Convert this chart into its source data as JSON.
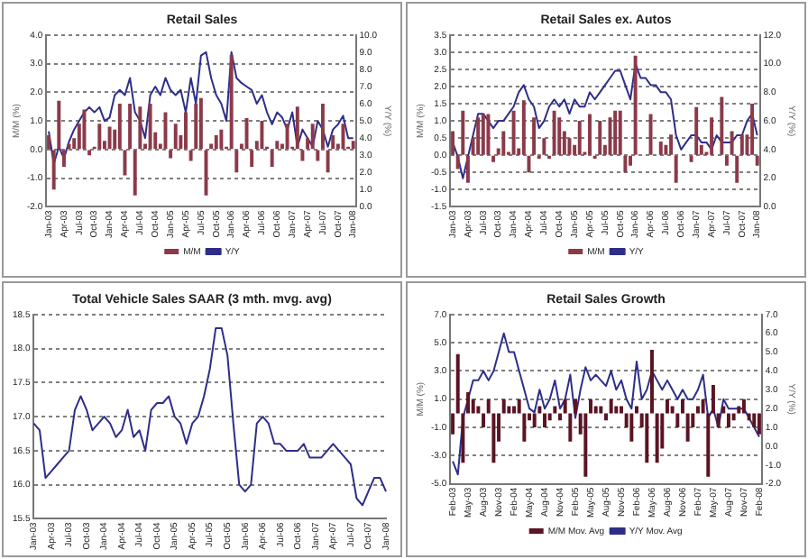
{
  "chart_data": [
    {
      "type": "bar",
      "title": "Retail Sales",
      "ylabel": "M/M (%)",
      "y2label": "Y/Y (%)",
      "categories": [
        "Jan-03",
        null,
        null,
        "Apr-03",
        null,
        null,
        "Jul-03",
        null,
        null,
        "Oct-03",
        null,
        null,
        "Jan-04",
        null,
        null,
        "Apr-04",
        null,
        null,
        "Jul-04",
        null,
        null,
        "Oct-04",
        null,
        null,
        "Jan-05",
        null,
        null,
        "Apr-05",
        null,
        null,
        "Jul-05",
        null,
        null,
        "Oct-05",
        null,
        null,
        "Jan-06",
        null,
        null,
        "Apr-06",
        null,
        null,
        "Jul-06",
        null,
        null,
        "Oct-06",
        null,
        null,
        "Jan-07",
        null,
        null,
        "Apr-07",
        null,
        null,
        "Jul-07",
        null,
        null,
        "Oct-07",
        null,
        null,
        "Jan-08"
      ],
      "series": [
        {
          "name": "M/M",
          "type": "bar",
          "color": "#8b3a4a",
          "values": [
            0.5,
            -1.4,
            1.7,
            -0.6,
            0.2,
            0.4,
            0.9,
            1.4,
            -0.2,
            0.1,
            0.9,
            0.3,
            0.8,
            0.7,
            1.6,
            -0.9,
            1.6,
            -1.6,
            1.5,
            0.2,
            1.6,
            0.6,
            0.2,
            1.3,
            -0.3,
            0.9,
            0.5,
            1.3,
            -0.4,
            1.6,
            1.8,
            -1.6,
            0.2,
            0.5,
            0.7,
            0.1,
            3.3,
            -0.8,
            0.2,
            1.1,
            -0.6,
            0.3,
            1.0,
            0.1,
            -0.6,
            0.3,
            0.2,
            0.9,
            0.1,
            1.5,
            -0.4,
            0.4,
            0.9,
            -0.4,
            1.6,
            -0.8,
            0.5,
            0.2,
            0.9,
            0.1,
            0.3
          ]
        },
        {
          "name": "Y/Y",
          "type": "line",
          "axis": "y2",
          "color": "#2e2e8a",
          "values": [
            4.4,
            2.5,
            3.5,
            2.8,
            3.8,
            4.5,
            5.0,
            5.5,
            5.8,
            5.5,
            5.8,
            5.0,
            5.2,
            6.5,
            6.8,
            6.5,
            7.5,
            5.5,
            5.0,
            4.0,
            6.5,
            7.0,
            6.5,
            7.5,
            6.8,
            6.5,
            6.8,
            5.5,
            7.5,
            6.0,
            8.8,
            9.0,
            7.5,
            6.5,
            6.0,
            5.0,
            9.0,
            7.5,
            7.2,
            7.0,
            6.8,
            6.0,
            6.5,
            5.5,
            4.8,
            5.5,
            5.2,
            4.5,
            5.5,
            3.5,
            4.5,
            4.0,
            3.5,
            5.0,
            4.5,
            3.5,
            4.5,
            4.8,
            5.3,
            4.0,
            4.0
          ]
        }
      ],
      "ylim": [
        -2,
        4
      ],
      "yticks": [
        {
          "value": -2,
          "label": "-2.0"
        },
        {
          "value": -1,
          "label": "-1.0"
        },
        {
          "value": 0,
          "label": "0.0"
        },
        {
          "value": 1,
          "label": "1.0"
        },
        {
          "value": 2,
          "label": "2.0"
        },
        {
          "value": 3,
          "label": "3.0"
        },
        {
          "value": 4,
          "label": "4.0"
        }
      ],
      "y2lim": [
        0,
        10
      ],
      "y2ticks": [
        {
          "value": 0,
          "label": "0.0"
        },
        {
          "value": 1,
          "label": "1.0"
        },
        {
          "value": 2,
          "label": "2.0"
        },
        {
          "value": 3,
          "label": "3.0"
        },
        {
          "value": 4,
          "label": "4.0"
        },
        {
          "value": 5,
          "label": "5.0"
        },
        {
          "value": 6,
          "label": "6.0"
        },
        {
          "value": 7,
          "label": "7.0"
        },
        {
          "value": 8,
          "label": "8.0"
        },
        {
          "value": 9,
          "label": "9.0"
        },
        {
          "value": 10,
          "label": "10.0"
        }
      ],
      "grid": "y",
      "legend": "bottom"
    },
    {
      "type": "bar",
      "title": "Retail Sales ex. Autos",
      "ylabel": "M/M (%)",
      "y2label": "Y/Y (%)",
      "categories": [
        "Jan-03",
        null,
        null,
        "Apr-03",
        null,
        null,
        "Jul-03",
        null,
        null,
        "Oct-03",
        null,
        null,
        "Jan-04",
        null,
        null,
        "Apr-04",
        null,
        null,
        "Jul-04",
        null,
        null,
        "Oct-04",
        null,
        null,
        "Jan-05",
        null,
        null,
        "Apr-05",
        null,
        null,
        "Jul-05",
        null,
        null,
        "Oct-05",
        null,
        null,
        "Jan-06",
        null,
        null,
        "Apr-06",
        null,
        null,
        "Jul-06",
        null,
        null,
        "Oct-06",
        null,
        null,
        "Jan-07",
        null,
        null,
        "Apr-07",
        null,
        null,
        "Jul-07",
        null,
        null,
        "Oct-07",
        null,
        null,
        "Jan-08"
      ],
      "series": [
        {
          "name": "M/M",
          "type": "bar",
          "color": "#8b3a4a",
          "values": [
            0.7,
            -0.4,
            1.3,
            -0.8,
            0.5,
            1.1,
            1.2,
            1.2,
            -0.2,
            0.2,
            0.7,
            0.1,
            1.3,
            0.2,
            1.6,
            -0.5,
            1.1,
            -0.1,
            0.5,
            -0.1,
            1.3,
            1.1,
            0.7,
            0.5,
            0.3,
            1.0,
            0.1,
            1.2,
            -0.1,
            1.0,
            0.3,
            1.1,
            1.3,
            1.3,
            -0.5,
            -0.3,
            2.9,
            0.0,
            0.0,
            1.2,
            0.0,
            0.4,
            0.3,
            0.6,
            -0.8,
            0.0,
            0.0,
            -0.2,
            1.4,
            0.3,
            0.1,
            1.1,
            0.0,
            1.7,
            -0.3,
            0.7,
            -0.8,
            0.6,
            0.6,
            1.5,
            -0.3
          ]
        },
        {
          "name": "Y/Y",
          "type": "line",
          "axis": "y2",
          "color": "#2e2e8a",
          "values": [
            4.5,
            3.5,
            2.0,
            3.5,
            5.0,
            6.5,
            6.5,
            6.0,
            5.5,
            6.0,
            6.0,
            6.5,
            7.0,
            8.0,
            8.5,
            7.5,
            7.0,
            5.5,
            6.0,
            7.0,
            7.5,
            7.0,
            7.5,
            6.5,
            7.5,
            7.0,
            7.0,
            8.0,
            7.5,
            8.0,
            8.5,
            9.0,
            9.5,
            9.5,
            8.5,
            7.5,
            10.0,
            9.0,
            9.0,
            8.5,
            8.5,
            8.0,
            8.0,
            7.5,
            5.0,
            4.0,
            4.5,
            5.0,
            5.0,
            4.5,
            4.5,
            4.0,
            5.0,
            4.5,
            4.5,
            4.5,
            5.0,
            5.0,
            6.0,
            6.5,
            5.0
          ]
        }
      ],
      "ylim": [
        -1.5,
        3.5
      ],
      "yticks": [
        {
          "value": -1.5,
          "label": "-1.5"
        },
        {
          "value": -1,
          "label": "-1.0"
        },
        {
          "value": -0.5,
          "label": "-0.5"
        },
        {
          "value": 0,
          "label": "0.0"
        },
        {
          "value": 0.5,
          "label": "0.5"
        },
        {
          "value": 1,
          "label": "1.0"
        },
        {
          "value": 1.5,
          "label": "1.5"
        },
        {
          "value": 2,
          "label": "2.0"
        },
        {
          "value": 2.5,
          "label": "2.5"
        },
        {
          "value": 3,
          "label": "3.0"
        },
        {
          "value": 3.5,
          "label": "3.5"
        }
      ],
      "y2lim": [
        0,
        12
      ],
      "y2ticks": [
        {
          "value": 0,
          "label": "0.0"
        },
        {
          "value": 2,
          "label": "2.0"
        },
        {
          "value": 4,
          "label": "4.0"
        },
        {
          "value": 6,
          "label": "6.0"
        },
        {
          "value": 8,
          "label": "8.0"
        },
        {
          "value": 10,
          "label": "10.0"
        },
        {
          "value": 12,
          "label": "12.0"
        }
      ],
      "grid": "y",
      "legend": "bottom"
    },
    {
      "type": "line",
      "title": "Total Vehicle Sales SAAR (3 mth. mvg. avg)",
      "categories": [
        "Jan-03",
        null,
        null,
        "Apr-03",
        null,
        null,
        "Jul-03",
        null,
        null,
        "Oct-03",
        null,
        null,
        "Jan-04",
        null,
        null,
        "Apr-04",
        null,
        null,
        "Jul-04",
        null,
        null,
        "Oct-04",
        null,
        null,
        "Jan-05",
        null,
        null,
        "Apr-05",
        null,
        null,
        "Jul-05",
        null,
        null,
        "Oct-05",
        null,
        null,
        "Jan-06",
        null,
        null,
        "Apr-06",
        null,
        null,
        "Jul-06",
        null,
        null,
        "Oct-06",
        null,
        null,
        "Jan-07",
        null,
        null,
        "Apr-07",
        null,
        null,
        "Jul-07",
        null,
        null,
        "Oct-07",
        null,
        null,
        "Jan-08"
      ],
      "series": [
        {
          "color": "#2e2e8a",
          "values": [
            16.9,
            16.8,
            16.1,
            16.2,
            16.3,
            16.4,
            16.5,
            17.1,
            17.3,
            17.1,
            16.8,
            16.9,
            17.0,
            16.9,
            16.7,
            16.8,
            17.1,
            16.7,
            16.8,
            16.5,
            17.1,
            17.2,
            17.2,
            17.3,
            17.0,
            16.9,
            16.6,
            16.9,
            17.0,
            17.3,
            17.7,
            18.3,
            18.3,
            17.9,
            16.9,
            16.0,
            15.9,
            16.0,
            16.9,
            17.0,
            16.9,
            16.6,
            16.6,
            16.5,
            16.5,
            16.5,
            16.6,
            16.4,
            16.4,
            16.4,
            16.5,
            16.6,
            16.5,
            16.4,
            16.3,
            15.8,
            15.7,
            15.9,
            16.1,
            16.1,
            15.9
          ]
        }
      ],
      "ylim": [
        15.5,
        18.5
      ],
      "yticks": [
        {
          "value": 15.5,
          "label": "15.5"
        },
        {
          "value": 16,
          "label": "16.0"
        },
        {
          "value": 16.5,
          "label": "16.5"
        },
        {
          "value": 17,
          "label": "17.0"
        },
        {
          "value": 17.5,
          "label": "17.5"
        },
        {
          "value": 18,
          "label": "18.0"
        },
        {
          "value": 18.5,
          "label": "18.5"
        }
      ],
      "grid": "y"
    },
    {
      "type": "bar",
      "title": "Retail Sales Growth",
      "ylabel": "M/M (%)",
      "y2label": "Y/Y (%)",
      "categories": [
        "Feb-03",
        null,
        null,
        "May-03",
        null,
        null,
        "Aug-03",
        null,
        null,
        "Nov-03",
        null,
        null,
        "Feb-04",
        null,
        null,
        "May-04",
        null,
        null,
        "Aug-04",
        null,
        null,
        "Nov-04",
        null,
        null,
        "Feb-05",
        null,
        null,
        "May-05",
        null,
        null,
        "Aug-05",
        null,
        null,
        "Nov-05",
        null,
        null,
        "Feb-06",
        null,
        null,
        "May-06",
        null,
        null,
        "Aug-06",
        null,
        null,
        "Nov-06",
        null,
        null,
        "Feb-07",
        null,
        null,
        "May-07",
        null,
        null,
        "Aug-07",
        null,
        null,
        "Nov-07",
        null,
        null,
        "Feb-08"
      ],
      "series": [
        {
          "name": "M/M Mov. Avg",
          "type": "bar",
          "color": "#5a1424",
          "values": [
            -1.5,
            4.2,
            -3.5,
            1.5,
            1.0,
            0.5,
            -1.0,
            1.0,
            -3.5,
            -2.0,
            1.0,
            0.5,
            0.5,
            1.0,
            -2.0,
            -0.5,
            -1.0,
            0.5,
            -1.0,
            -0.5,
            0.5,
            -0.5,
            1.0,
            -2.0,
            1.0,
            -1.5,
            -4.5,
            1.0,
            0.5,
            0.5,
            -0.5,
            1.0,
            0.5,
            0.5,
            -1.0,
            -2.0,
            0.5,
            -1.0,
            -3.5,
            4.5,
            -3.5,
            -2.5,
            1.0,
            0.5,
            -1.0,
            1.0,
            -2.0,
            -1.0,
            0.5,
            1.0,
            -4.5,
            2.0,
            -1.0,
            0.5,
            -1.0,
            -0.5,
            0.5,
            1.0,
            -0.5,
            -1.0,
            -1.5
          ]
        },
        {
          "name": "Y/Y Mov. Avg",
          "type": "line",
          "axis": "y2",
          "color": "#2e2e8a",
          "values": [
            -0.8,
            -1.5,
            1.5,
            2.5,
            3.5,
            3.5,
            4.0,
            3.5,
            4.0,
            5.0,
            6.0,
            5.0,
            5.0,
            4.0,
            3.0,
            2.0,
            1.8,
            3.0,
            2.0,
            2.5,
            3.5,
            2.0,
            2.5,
            3.8,
            1.5,
            3.0,
            4.2,
            3.5,
            3.8,
            3.5,
            3.2,
            4.0,
            3.0,
            3.5,
            2.5,
            2.0,
            4.5,
            2.5,
            3.0,
            4.0,
            3.5,
            3.0,
            3.5,
            3.0,
            2.5,
            3.0,
            2.5,
            2.5,
            3.0,
            3.8,
            1.5,
            2.0,
            1.0,
            2.5,
            2.0,
            2.0,
            2.0,
            2.0,
            1.5,
            1.0,
            0.5
          ]
        }
      ],
      "ylim": [
        -5,
        7
      ],
      "yticks": [
        {
          "value": -5,
          "label": "-5.0"
        },
        {
          "value": -3,
          "label": "-3.0"
        },
        {
          "value": -1,
          "label": "-1.0"
        },
        {
          "value": 1,
          "label": "1.0"
        },
        {
          "value": 3,
          "label": "3.0"
        },
        {
          "value": 5,
          "label": "5.0"
        },
        {
          "value": 7,
          "label": "7.0"
        }
      ],
      "y2lim": [
        -2,
        7
      ],
      "y2ticks": [
        {
          "value": -2,
          "label": "-2.0"
        },
        {
          "value": -1,
          "label": "-1.0"
        },
        {
          "value": 0,
          "label": "0.0"
        },
        {
          "value": 1,
          "label": "1.0"
        },
        {
          "value": 2,
          "label": "2.0"
        },
        {
          "value": 3,
          "label": "3.0"
        },
        {
          "value": 4,
          "label": "4.0"
        },
        {
          "value": 5,
          "label": "5.0"
        },
        {
          "value": 6,
          "label": "6.0"
        },
        {
          "value": 7,
          "label": "7.0"
        }
      ],
      "grid": "y",
      "legend": "bottom"
    }
  ]
}
